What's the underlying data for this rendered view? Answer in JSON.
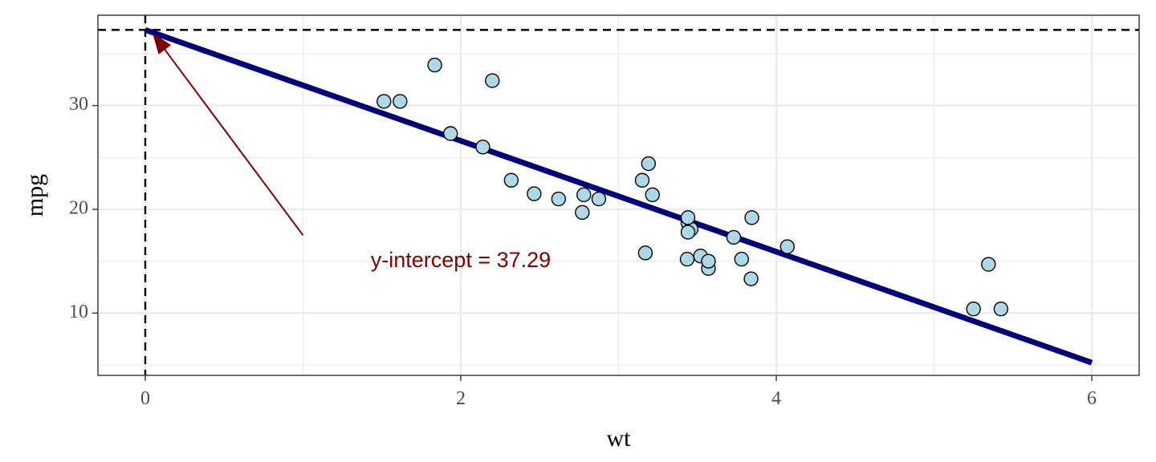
{
  "chart_data": {
    "type": "scatter",
    "title": "",
    "xlabel": "wt",
    "ylabel": "mpg",
    "xlim": [
      -0.3,
      6.3
    ],
    "ylim": [
      4.0,
      38.7
    ],
    "x_ticks": [
      0,
      2,
      4,
      6
    ],
    "y_ticks": [
      10,
      20,
      30
    ],
    "x_tick_labels": [
      "0",
      "2",
      "4",
      "6"
    ],
    "y_tick_labels": [
      "10",
      "20",
      "30"
    ],
    "grid": true,
    "legend": "none",
    "points": [
      {
        "x": 2.62,
        "y": 21.0
      },
      {
        "x": 2.875,
        "y": 21.0
      },
      {
        "x": 2.32,
        "y": 22.8
      },
      {
        "x": 3.215,
        "y": 21.4
      },
      {
        "x": 3.44,
        "y": 18.7
      },
      {
        "x": 3.46,
        "y": 18.1
      },
      {
        "x": 3.57,
        "y": 14.3
      },
      {
        "x": 3.19,
        "y": 24.4
      },
      {
        "x": 3.15,
        "y": 22.8
      },
      {
        "x": 3.44,
        "y": 19.2
      },
      {
        "x": 3.44,
        "y": 17.8
      },
      {
        "x": 4.07,
        "y": 16.4
      },
      {
        "x": 3.73,
        "y": 17.3
      },
      {
        "x": 3.78,
        "y": 15.2
      },
      {
        "x": 5.25,
        "y": 10.4
      },
      {
        "x": 5.424,
        "y": 10.4
      },
      {
        "x": 5.345,
        "y": 14.7
      },
      {
        "x": 2.2,
        "y": 32.4
      },
      {
        "x": 1.615,
        "y": 30.4
      },
      {
        "x": 1.835,
        "y": 33.9
      },
      {
        "x": 2.465,
        "y": 21.5
      },
      {
        "x": 3.52,
        "y": 15.5
      },
      {
        "x": 3.435,
        "y": 15.2
      },
      {
        "x": 3.84,
        "y": 13.3
      },
      {
        "x": 3.845,
        "y": 19.2
      },
      {
        "x": 1.935,
        "y": 27.3
      },
      {
        "x": 2.14,
        "y": 26.0
      },
      {
        "x": 1.513,
        "y": 30.4
      },
      {
        "x": 3.17,
        "y": 15.8
      },
      {
        "x": 2.77,
        "y": 19.7
      },
      {
        "x": 3.57,
        "y": 15.0
      },
      {
        "x": 2.78,
        "y": 21.4
      }
    ],
    "regression_line": {
      "intercept": 37.29,
      "slope": -5.344,
      "x_range": [
        0,
        6
      ]
    },
    "reference_lines": {
      "vertical_x": 0,
      "horizontal_y": 37.29
    },
    "annotation": {
      "text": "y-intercept = 37.29",
      "x": 2.0,
      "y": 15.0,
      "arrow_from": [
        1.0,
        17.5
      ],
      "arrow_to": [
        0.05,
        36.9
      ]
    },
    "colors": {
      "point_fill": "#add8e6",
      "point_stroke": "#000000",
      "line": "#00007f",
      "annotation": "#800000",
      "grid": "#ebebeb",
      "panel_border": "#333333"
    }
  }
}
